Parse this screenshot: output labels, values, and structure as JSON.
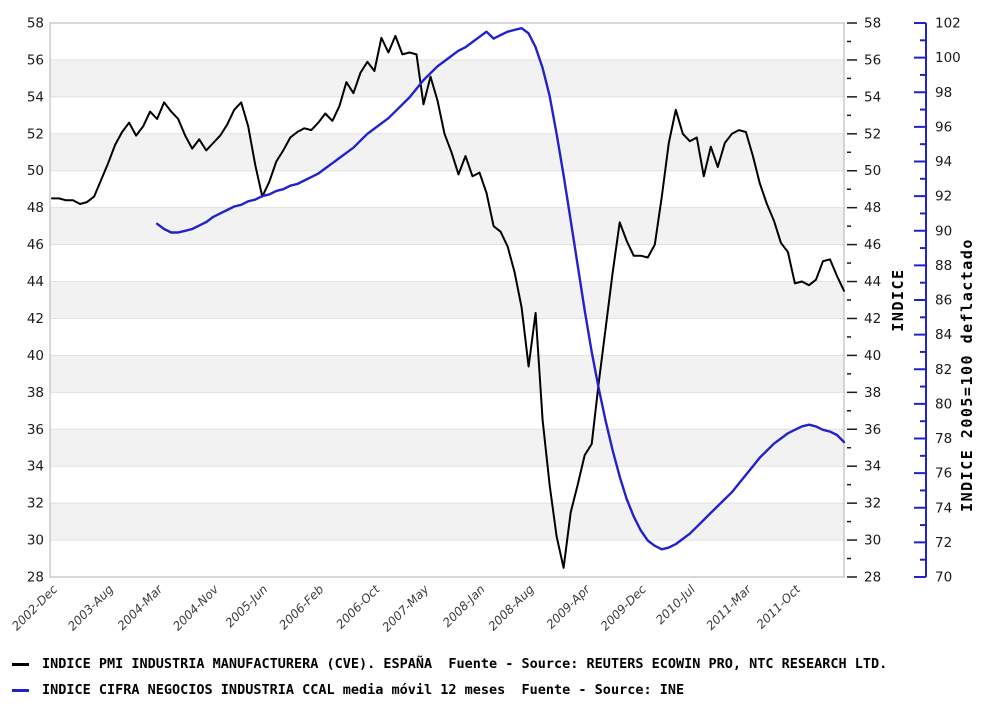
{
  "chart_data": {
    "type": "line",
    "title": "",
    "x_unit": "month",
    "x_start_month": "2002-Dec",
    "months_span": 113,
    "x_ticks": [
      {
        "label": "2002-Dec",
        "month_index": 0
      },
      {
        "label": "2003-Aug",
        "month_index": 8
      },
      {
        "label": "2004-Mar",
        "month_index": 15
      },
      {
        "label": "2004-Nov",
        "month_index": 23
      },
      {
        "label": "2005-Jun",
        "month_index": 30
      },
      {
        "label": "2006-Feb",
        "month_index": 38
      },
      {
        "label": "2006-Oct",
        "month_index": 46
      },
      {
        "label": "2007-May",
        "month_index": 53
      },
      {
        "label": "2008-Jan",
        "month_index": 61
      },
      {
        "label": "2008-Aug",
        "month_index": 68
      },
      {
        "label": "2009-Apr",
        "month_index": 76
      },
      {
        "label": "2009-Dec",
        "month_index": 84
      },
      {
        "label": "2010-Jul",
        "month_index": 91
      },
      {
        "label": "2011-Mar",
        "month_index": 99
      },
      {
        "label": "2011-Oct",
        "month_index": 106
      }
    ],
    "left_axis": {
      "label": "",
      "range": [
        28,
        58
      ],
      "tick_step": 2,
      "tick_labels": [
        28,
        30,
        32,
        34,
        36,
        38,
        40,
        42,
        44,
        46,
        48,
        50,
        52,
        54,
        56,
        58
      ]
    },
    "right_axis": {
      "label": "INDICE",
      "range": [
        28,
        58
      ],
      "tick_step": 2,
      "tick_labels": [
        28,
        30,
        32,
        34,
        36,
        38,
        40,
        42,
        44,
        46,
        48,
        50,
        52,
        54,
        56,
        58
      ]
    },
    "far_right_axis": {
      "label": "INDICE 2005=100 deflactado",
      "range": [
        70,
        102
      ],
      "tick_step": 2,
      "tick_labels": [
        70,
        72,
        74,
        76,
        78,
        80,
        82,
        84,
        86,
        88,
        90,
        92,
        94,
        96,
        98,
        100,
        102
      ]
    },
    "grid": "horizontal-bands",
    "legend_position": "bottom-left",
    "series": [
      {
        "name": "INDICE PMI INDUSTRIA MANUFACTURERA (CVE). ESPAÑA",
        "color": "#000000",
        "axis": "left",
        "start_month_index": 0,
        "values": [
          48.5,
          48.5,
          48.4,
          48.4,
          48.2,
          48.3,
          48.6,
          49.5,
          50.4,
          51.4,
          52.1,
          52.6,
          51.9,
          52.4,
          53.2,
          52.8,
          53.7,
          53.2,
          52.8,
          51.9,
          51.2,
          51.7,
          51.1,
          51.5,
          51.9,
          52.5,
          53.3,
          53.7,
          52.4,
          50.3,
          48.6,
          49.4,
          50.5,
          51.1,
          51.8,
          52.1,
          52.3,
          52.2,
          52.6,
          53.1,
          52.7,
          53.5,
          54.8,
          54.2,
          55.3,
          55.9,
          55.4,
          57.2,
          56.4,
          57.3,
          56.3,
          56.4,
          56.3,
          53.6,
          55.1,
          53.8,
          52.0,
          51.0,
          49.8,
          50.8,
          49.7,
          49.9,
          48.8,
          47.0,
          46.7,
          45.9,
          44.5,
          42.6,
          39.4,
          42.3,
          36.5,
          33.0,
          30.2,
          28.5,
          31.5,
          33.0,
          34.6,
          35.2,
          38.5,
          41.5,
          44.5,
          47.2,
          46.2,
          45.4,
          45.4,
          45.3,
          46.0,
          48.6,
          51.5,
          53.3,
          52.0,
          51.6,
          51.8,
          49.7,
          51.3,
          50.2,
          51.5,
          52.0,
          52.2,
          52.1,
          50.8,
          49.3,
          48.2,
          47.3,
          46.1,
          45.6,
          43.9,
          44.0,
          43.8,
          44.1,
          45.1,
          45.2,
          44.3,
          43.5
        ]
      },
      {
        "name": "INDICE CIFRA NEGOCIOS INDUSTRIA CCAL media móvil 12 meses",
        "color": "#2222cc",
        "axis": "far_right",
        "start_month_index": 15,
        "values": [
          90.4,
          90.1,
          89.9,
          89.9,
          90.0,
          90.1,
          90.3,
          90.5,
          90.8,
          91.0,
          91.2,
          91.4,
          91.5,
          91.7,
          91.8,
          92.0,
          92.1,
          92.3,
          92.4,
          92.6,
          92.7,
          92.9,
          93.1,
          93.3,
          93.6,
          93.9,
          94.2,
          94.5,
          94.8,
          95.2,
          95.6,
          95.9,
          96.2,
          96.5,
          96.9,
          97.3,
          97.7,
          98.2,
          98.7,
          99.1,
          99.5,
          99.8,
          100.1,
          100.4,
          100.6,
          100.9,
          101.2,
          101.5,
          101.1,
          101.3,
          101.5,
          101.6,
          101.7,
          101.4,
          100.6,
          99.4,
          97.8,
          95.6,
          93.2,
          90.6,
          88.0,
          85.4,
          83.0,
          80.9,
          79.0,
          77.3,
          75.8,
          74.5,
          73.5,
          72.7,
          72.1,
          71.8,
          71.6,
          71.7,
          71.9,
          72.2,
          72.5,
          72.9,
          73.3,
          73.7,
          74.1,
          74.5,
          74.9,
          75.4,
          75.9,
          76.4,
          76.9,
          77.3,
          77.7,
          78.0,
          78.3,
          78.5,
          78.7,
          78.8,
          78.7,
          78.5,
          78.4,
          78.2,
          77.8
        ]
      }
    ],
    "colors": {
      "band_gray": "#f2f2f2",
      "gridline": "#e0e0e0",
      "frame": "#b0b0b0",
      "blue_axis_text": "#3333cc"
    }
  },
  "legend": [
    {
      "text": "INDICE PMI INDUSTRIA MANUFACTURERA (CVE). ESPAÑA  Fuente - Source: REUTERS ECOWIN PRO, NTC RESEARCH LTD.",
      "color": "#000000"
    },
    {
      "text": "INDICE CIFRA NEGOCIOS INDUSTRIA CCAL media móvil 12 meses  Fuente - Source: INE",
      "color": "#2222cc"
    }
  ]
}
